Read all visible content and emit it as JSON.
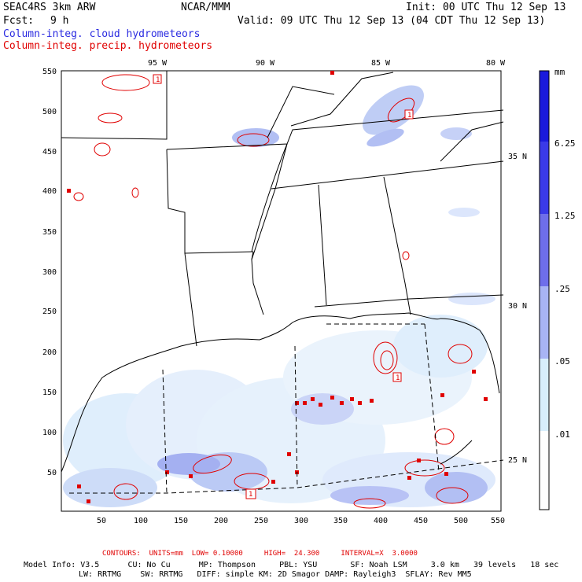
{
  "header": {
    "model": "SEAC4RS 3km ARW",
    "source": "NCAR/MMM",
    "init": "Init: 00 UTC Thu 12 Sep 13",
    "fcst_label": "Fcst:",
    "fcst_value": "9 h",
    "valid": "Valid: 09 UTC Thu 12 Sep 13 (04 CDT Thu 12 Sep 13)",
    "field_cloud": "Column-integ. cloud hydrometeors",
    "field_precip": "Column-integ. precip. hydrometeors"
  },
  "map": {
    "lon_labels": [
      "95 W",
      "90 W",
      "85 W",
      "80 W"
    ],
    "lat_labels": [
      "35 N",
      "30 N",
      "25 N"
    ],
    "y_ticks": [
      "550",
      "500",
      "450",
      "400",
      "350",
      "300",
      "250",
      "200",
      "150",
      "100",
      "50"
    ],
    "x_ticks": [
      "50",
      "100",
      "150",
      "200",
      "250",
      "300",
      "350",
      "400",
      "450",
      "500",
      "550"
    ],
    "box_markers": [
      "1",
      "1",
      "1",
      "1"
    ]
  },
  "colorbar": {
    "unit": "mm",
    "levels": [
      "6.25",
      "1.25",
      ".25",
      ".05",
      ".01"
    ],
    "colors": [
      "#1a1adc",
      "#3a3ae8",
      "#6e6eea",
      "#a8b4f4",
      "#d8eefc",
      "#ffffff"
    ]
  },
  "footer": {
    "contours": "CONTOURS:  UNITS=mm  LOW= 0.10000     HIGH=  24.300     INTERVAL=X  3.0000",
    "line1": "Model Info: V3.5      CU: No Cu      MP: Thompson     PBL: YSU       SF: Noah LSM     3.0 km   39 levels   18 sec",
    "line2": "LW: RRTMG    SW: RRTMG   DIFF: simple KM: 2D Smagor DAMP: Rayleigh3  SFLAY: Rev MM5"
  }
}
